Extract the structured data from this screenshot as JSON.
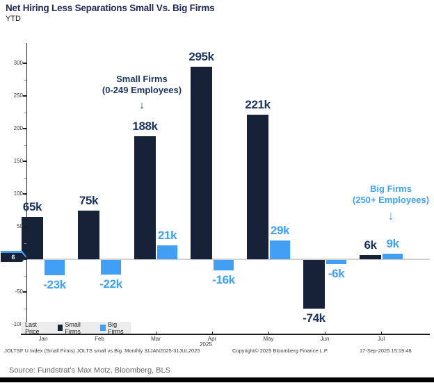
{
  "title": "Net Hiring Less Separations Small Vs. Big Firms",
  "subtitle": "YTD",
  "colors": {
    "small_firms_bar": "#152238",
    "big_firms_bar": "#41a0f6",
    "small_label": "#1c3462",
    "big_label": "#3fa1f7",
    "title_navy": "#21295b",
    "legend_bg": "#ececec",
    "axis": "#1c1c1c",
    "zero_line": "#d0d0d0"
  },
  "chart_data": {
    "type": "bar",
    "title": "Net Hiring Less Separations Small Vs. Big Firms",
    "subtitle": "YTD",
    "categories": [
      "Jan",
      "Feb",
      "Mar",
      "Apr",
      "May",
      "Jun",
      "Jul"
    ],
    "x_axis_year": "2025",
    "series": [
      {
        "name": "Small Firms",
        "color": "#152238",
        "label_color": "#1c3462",
        "values": [
          65,
          75,
          188,
          295,
          221,
          -74,
          6
        ],
        "labels": [
          "65k",
          "75k",
          "188k",
          "295k",
          "221k",
          "-74k",
          "6k"
        ]
      },
      {
        "name": "Big Firms",
        "color": "#41a0f6",
        "label_color": "#3fa1f7",
        "values": [
          -23,
          -22,
          21,
          -16,
          29,
          -6,
          9
        ],
        "labels": [
          "-23k",
          "-22k",
          "21k",
          "-16k",
          "29k",
          "-6k",
          "9k"
        ]
      }
    ],
    "unit": "thousands (k)",
    "ylim": [
      -115,
      330
    ],
    "yticks": [
      300,
      250,
      200,
      150,
      100,
      50,
      0,
      -50,
      -100
    ],
    "grid": "none",
    "legend_position": "bottom-left"
  },
  "annotations": {
    "small_firms": {
      "line1": "Small Firms",
      "line2": "(0-249 Employees)",
      "arrow": "↓"
    },
    "big_firms": {
      "line1": "Big Firms",
      "line2": "(250+ Employees)",
      "arrow": "↓"
    }
  },
  "last_price_tag": "6",
  "legend": {
    "last_price": "Last Price",
    "small": "Small Firms",
    "big": "Big Firms"
  },
  "footer": {
    "left": ".JOLTSF U Index (Small Firms) JOLTS small vs Big  Monthly 31JAN2025-31JUL2025",
    "center": "Copyright© 2025 Bloomberg Finance L.P.",
    "right": "17-Sep-2025 15:19:48"
  },
  "source": "Source: Fundstrat's Max Motz, Bloomberg, BLS"
}
